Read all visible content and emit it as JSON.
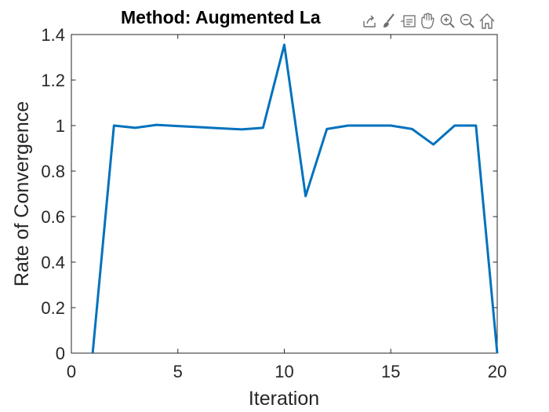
{
  "chart_data": {
    "type": "line",
    "title": "Method: Augmented La",
    "xlabel": "Iteration",
    "ylabel": "Rate of Convergence",
    "xlim": [
      0,
      20
    ],
    "ylim": [
      0,
      1.4
    ],
    "xticks": [
      0,
      5,
      10,
      15,
      20
    ],
    "yticks": [
      0,
      0.2,
      0.4,
      0.6,
      0.8,
      1,
      1.2,
      1.4
    ],
    "xtick_labels": [
      "0",
      "5",
      "10",
      "15",
      "20"
    ],
    "ytick_labels": [
      "0",
      "0.2",
      "0.4",
      "0.6",
      "0.8",
      "1",
      "1.2",
      "1.4"
    ],
    "grid": false,
    "series": [
      {
        "color": "#0072BD",
        "x": [
          1,
          2,
          3,
          4,
          5,
          6,
          7,
          8,
          9,
          10,
          11,
          12,
          13,
          14,
          15,
          16,
          17,
          18,
          19,
          20
        ],
        "values": [
          0,
          1.0,
          0.99,
          1.003,
          0.998,
          0.993,
          0.988,
          0.983,
          0.99,
          1.355,
          0.69,
          0.985,
          1.0,
          1.0,
          1.0,
          0.985,
          0.917,
          1.0,
          1.0,
          0
        ]
      }
    ]
  },
  "toolbar": {
    "buttons": [
      {
        "icon": "export-icon"
      },
      {
        "icon": "brush-icon"
      },
      {
        "icon": "datatip-icon"
      },
      {
        "icon": "pan-hand-icon"
      },
      {
        "icon": "zoom-in-icon"
      },
      {
        "icon": "zoom-out-icon"
      },
      {
        "icon": "home-icon"
      }
    ]
  }
}
